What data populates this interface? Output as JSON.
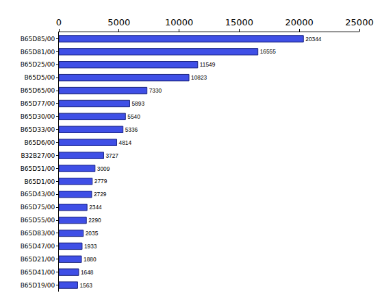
{
  "chart_data": {
    "type": "bar",
    "orientation": "horizontal",
    "categories": [
      "B65D85/00",
      "B65D81/00",
      "B65D25/00",
      "B65D5/00",
      "B65D65/00",
      "B65D77/00",
      "B65D30/00",
      "B65D33/00",
      "B65D6/00",
      "B32B27/00",
      "B65D51/00",
      "B65D1/00",
      "B65D43/00",
      "B65D75/00",
      "B65D55/00",
      "B65D83/00",
      "B65D47/00",
      "B65D21/00",
      "B65D41/00",
      "B65D19/00"
    ],
    "values": [
      20344,
      16555,
      11549,
      10823,
      7330,
      5893,
      5540,
      5336,
      4814,
      3727,
      3009,
      2779,
      2729,
      2344,
      2290,
      2035,
      1933,
      1880,
      1648,
      1563
    ],
    "color": "#3f4fe6",
    "xlim": [
      0,
      25000
    ],
    "xticks": [
      0,
      5000,
      10000,
      15000,
      20000,
      25000
    ],
    "grid": false,
    "data_labels": true
  }
}
